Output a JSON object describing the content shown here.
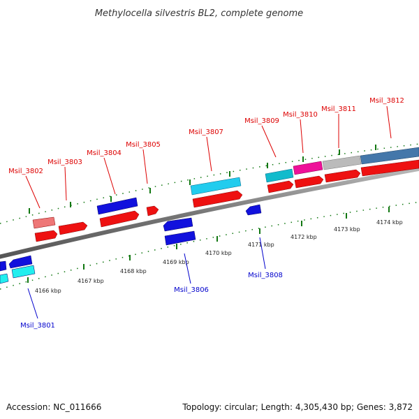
{
  "title": "Methylocella silvestris BL2, complete genome",
  "footer": {
    "accession": "Accession: NC_011666",
    "summary": "Topology: circular; Length: 4,305,430 bp; Genes: 3,872"
  },
  "scale_labels": [
    "4166 kbp",
    "4167 kbp",
    "4168 kbp",
    "4169 kbp",
    "4170 kbp",
    "4171 kbp",
    "4172 kbp",
    "4173 kbp",
    "4174 kbp"
  ],
  "gene_labels": {
    "top": [
      "Msil_3802",
      "Msil_3803",
      "Msil_3804",
      "Msil_3805",
      "Msil_3807",
      "Msil_3809",
      "Msil_3810",
      "Msil_3811",
      "Msil_3812"
    ],
    "bottom": [
      "Msil_3801",
      "Msil_3806",
      "Msil_3808"
    ]
  },
  "colors": {
    "forward_label": "#dd0000",
    "reverse_label": "#0000cc",
    "gene_red": "#ee1111",
    "gene_blue": "#1111dd",
    "gene_cyan": "#22ccee",
    "gene_teal": "#11bbcc",
    "gene_magenta": "#ee1199",
    "gene_grey": "#bbbbbb",
    "gene_steel": "#4477aa",
    "gene_pink": "#ee7777",
    "backbone": "#777777",
    "ticks": "#117711"
  }
}
